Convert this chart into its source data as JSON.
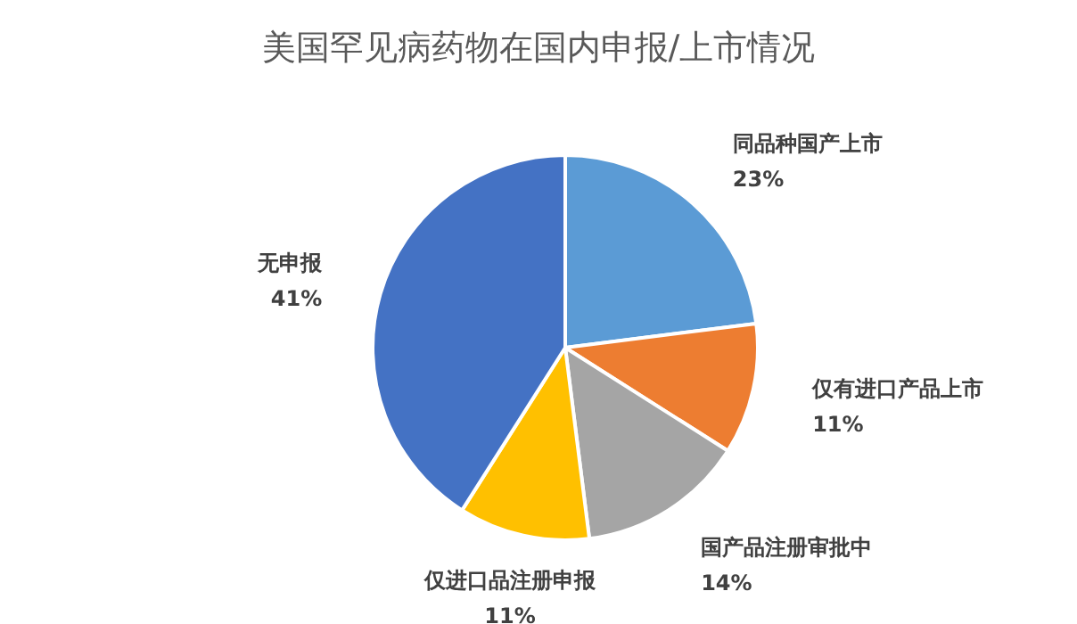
{
  "chart_data": {
    "type": "pie",
    "title": "美国罕见病药物在国内申报/上市情况",
    "categories": [
      "同品种国产上市",
      "仅有进口产品上市",
      "国产品注册审批中",
      "仅进口品注册申报",
      "无申报"
    ],
    "values": [
      23,
      11,
      14,
      11,
      41
    ],
    "value_labels": [
      "23%",
      "11%",
      "14%",
      "11%",
      "41%"
    ],
    "colors": [
      "#5b9bd5",
      "#ed7d31",
      "#a5a5a5",
      "#ffc000",
      "#4472c4"
    ],
    "legend": false
  }
}
